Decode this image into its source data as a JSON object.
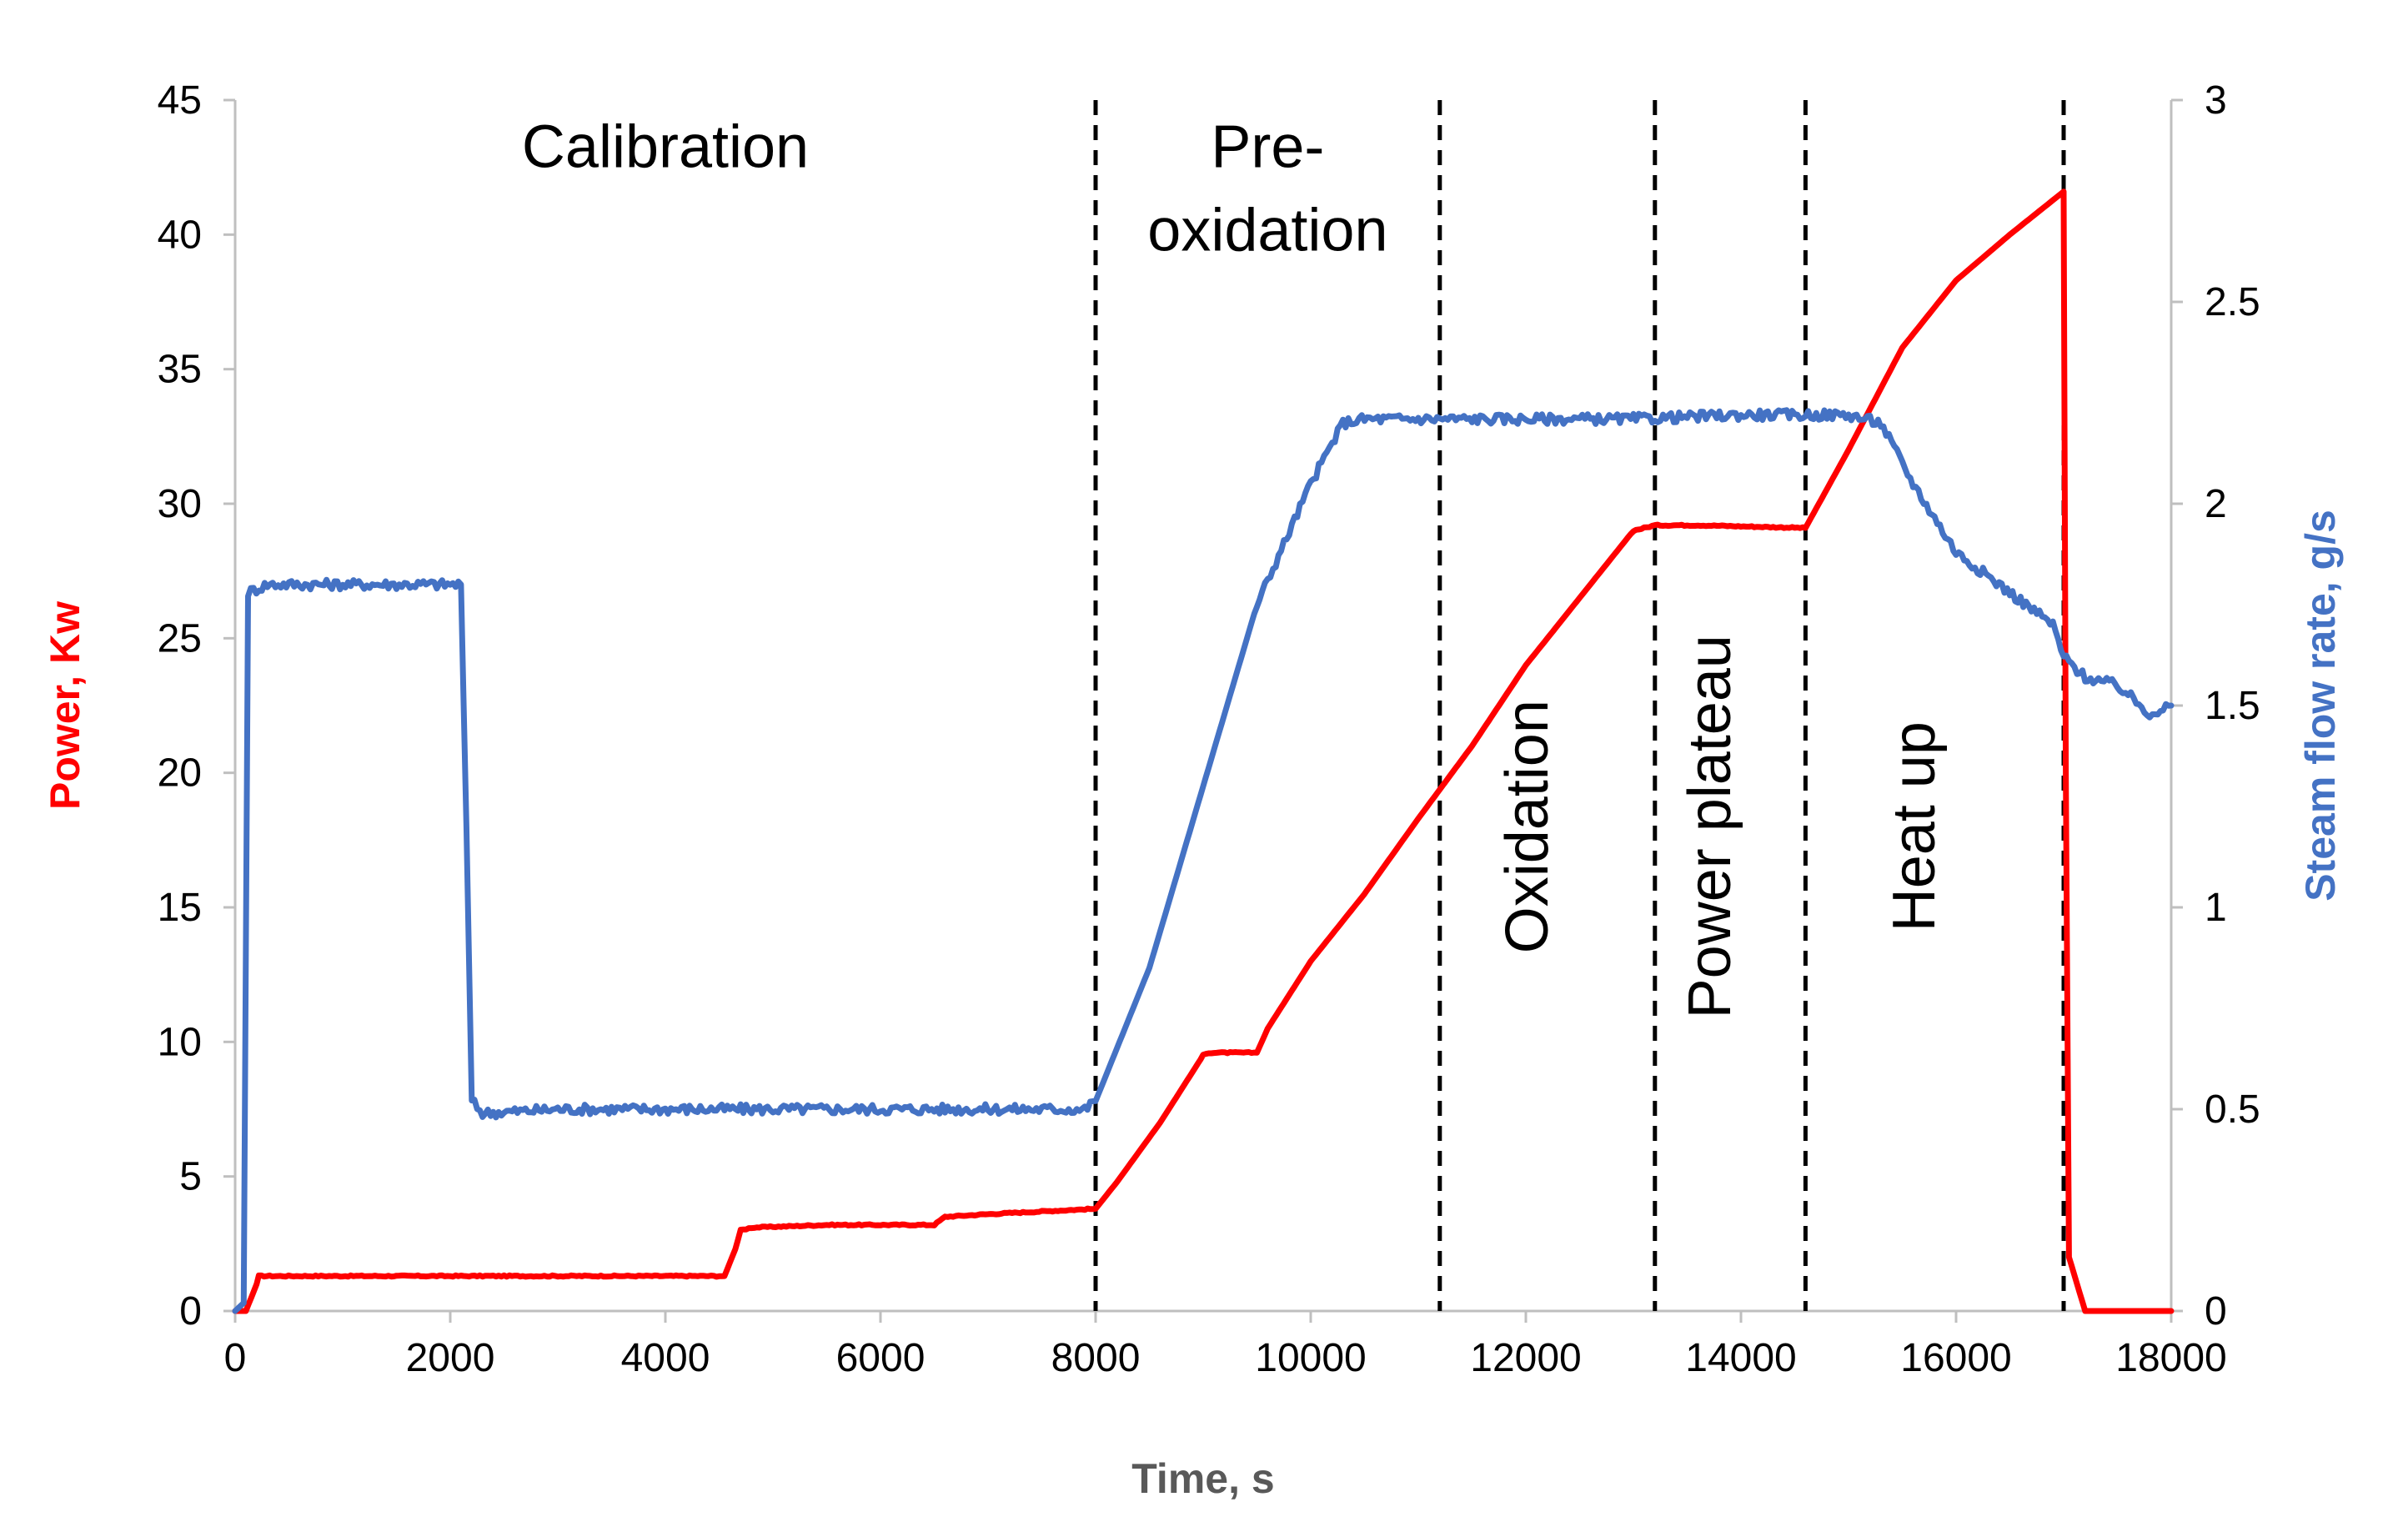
{
  "chart_data": {
    "type": "line",
    "title": "",
    "xlabel": "Time, s",
    "ylabel_left": "Power, Kw",
    "ylabel_right": "Steam flow rate, g/s",
    "xlim": [
      0,
      18000
    ],
    "ylim_left": [
      0,
      45
    ],
    "ylim_right": [
      0,
      3
    ],
    "grid": false,
    "legend": "none",
    "x_ticks": [
      "0",
      "2000",
      "4000",
      "6000",
      "8000",
      "10000",
      "12000",
      "14000",
      "16000",
      "18000"
    ],
    "y_left_ticks": [
      "0",
      "5",
      "10",
      "15",
      "20",
      "25",
      "30",
      "35",
      "40",
      "45"
    ],
    "y_right_ticks": [
      "0",
      "0.5",
      "1",
      "1.5",
      "2",
      "2.5",
      "3"
    ],
    "colors": {
      "power": "#ff0000",
      "steam": "#4472c4",
      "axis": "#bfbfbf",
      "axis_title": "#595959"
    },
    "phase_boundaries": [
      8000,
      11200,
      13200,
      14600,
      17000
    ],
    "phase_labels": [
      {
        "text": "Calibration",
        "lines": [
          "Calibration"
        ],
        "x": 4000,
        "y": 42.5,
        "rotated": false
      },
      {
        "text": "Pre-oxidation",
        "lines": [
          "Pre-",
          "oxidation"
        ],
        "x": 9600,
        "y": 42.5,
        "rotated": false
      },
      {
        "text": "Oxidation",
        "lines": [
          "Oxidation"
        ],
        "x": 12200,
        "y": 18,
        "rotated": true
      },
      {
        "text": "Power plateau",
        "lines": [
          "Power plateau"
        ],
        "x": 13900,
        "y": 18,
        "rotated": true
      },
      {
        "text": "Heat up",
        "lines": [
          "Heat up"
        ],
        "x": 15800,
        "y": 18,
        "rotated": true
      }
    ],
    "series": [
      {
        "name": "Power",
        "axis": "left",
        "x": [
          0,
          100,
          200,
          220,
          1000,
          2000,
          3000,
          4000,
          4550,
          4650,
          4700,
          4800,
          5500,
          6500,
          6600,
          7000,
          8000,
          8200,
          8600,
          9000,
          9050,
          9500,
          9600,
          10000,
          10500,
          11000,
          11500,
          12000,
          12500,
          13000,
          13200,
          13600,
          14600,
          15000,
          15500,
          16000,
          16500,
          17000,
          17020,
          17050,
          17200,
          18000
        ],
        "y": [
          0,
          0,
          1,
          1.3,
          1.3,
          1.3,
          1.3,
          1.3,
          1.3,
          2.3,
          3.0,
          3.1,
          3.2,
          3.2,
          3.5,
          3.6,
          3.8,
          4.8,
          7.0,
          9.5,
          9.6,
          9.6,
          10.5,
          13.0,
          15.5,
          18.3,
          21.0,
          24.0,
          26.5,
          29.0,
          29.2,
          29.2,
          29.1,
          32.0,
          35.8,
          38.3,
          40.0,
          41.6,
          20,
          2,
          0,
          0
        ]
      },
      {
        "name": "Steam flow rate",
        "axis": "right",
        "x": [
          0,
          80,
          120,
          300,
          1000,
          2000,
          2100,
          2150,
          2200,
          2300,
          3000,
          4000,
          5000,
          6000,
          7000,
          7900,
          8000,
          8500,
          9000,
          9500,
          10000,
          10300,
          10500,
          11000,
          12000,
          13000,
          14000,
          14600,
          15000,
          15300,
          15600,
          16000,
          16500,
          16900,
          17000,
          17200,
          17500,
          17800,
          18000
        ],
        "y": [
          0,
          0.02,
          1.78,
          1.8,
          1.8,
          1.8,
          1.8,
          1.2,
          0.52,
          0.49,
          0.5,
          0.5,
          0.5,
          0.5,
          0.5,
          0.5,
          0.52,
          0.85,
          1.3,
          1.75,
          2.05,
          2.2,
          2.21,
          2.21,
          2.21,
          2.21,
          2.22,
          2.22,
          2.22,
          2.2,
          2.05,
          1.88,
          1.78,
          1.7,
          1.62,
          1.57,
          1.55,
          1.48,
          1.5
        ]
      }
    ]
  }
}
